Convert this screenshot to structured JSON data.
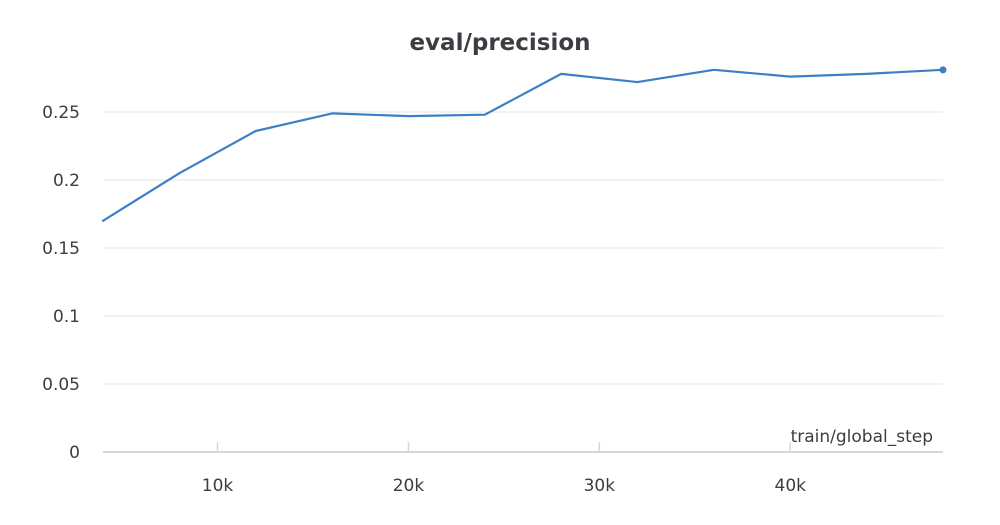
{
  "chart_data": {
    "type": "line",
    "title": "eval/precision",
    "xlabel": "train/global_step",
    "ylabel": "",
    "xlim": [
      4000,
      48000
    ],
    "ylim": [
      0,
      0.28
    ],
    "x_ticks": [
      10000,
      20000,
      30000,
      40000
    ],
    "x_tick_labels": [
      "10k",
      "20k",
      "30k",
      "40k"
    ],
    "y_ticks": [
      0,
      0.05,
      0.1,
      0.15,
      0.2,
      0.25
    ],
    "y_tick_labels": [
      "0",
      "0.05",
      "0.1",
      "0.15",
      "0.2",
      "0.25"
    ],
    "grid": true,
    "series": [
      {
        "color": "#3b7fc4",
        "x": [
          4000,
          8000,
          12000,
          16000,
          20000,
          24000,
          28000,
          32000,
          36000,
          40000,
          44000,
          48000
        ],
        "y": [
          0.17,
          0.205,
          0.236,
          0.249,
          0.247,
          0.248,
          0.278,
          0.272,
          0.281,
          0.276,
          0.278,
          0.281
        ]
      }
    ]
  }
}
